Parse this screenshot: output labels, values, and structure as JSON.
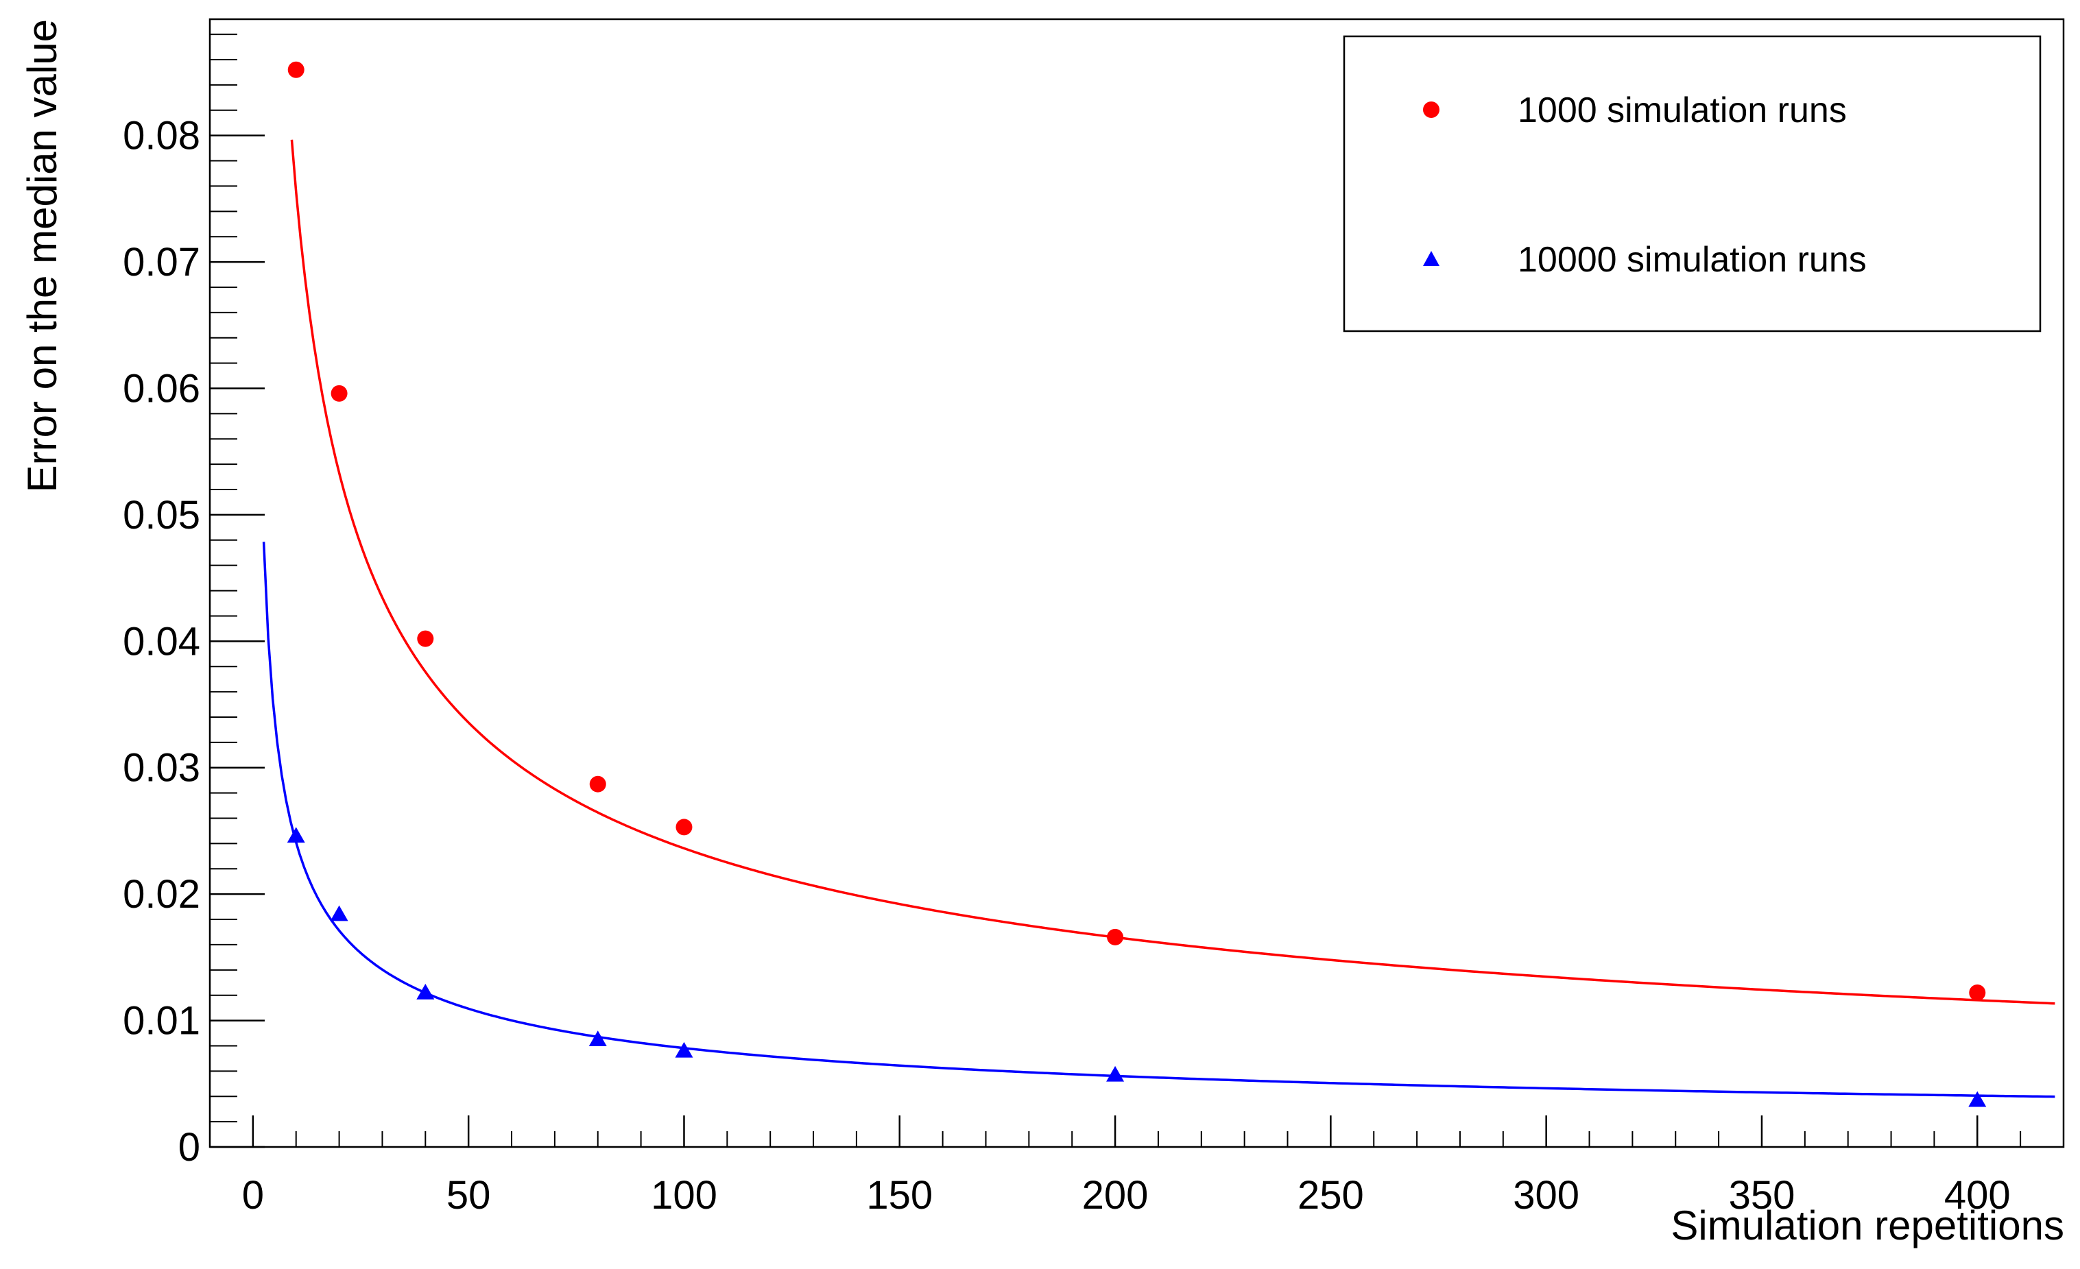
{
  "chart_data": {
    "type": "scatter",
    "title": "",
    "xlabel": "Simulation repetitions",
    "ylabel": "Error on the median value",
    "xlim": [
      -10,
      420
    ],
    "ylim": [
      0,
      0.0892
    ],
    "x_ticks": [
      0,
      50,
      100,
      150,
      200,
      250,
      300,
      350,
      400
    ],
    "x_tick_labels": [
      "0",
      "50",
      "100",
      "150",
      "200",
      "250",
      "300",
      "350",
      "400"
    ],
    "y_ticks": [
      0,
      0.01,
      0.02,
      0.03,
      0.04,
      0.05,
      0.06,
      0.07,
      0.08
    ],
    "y_tick_labels": [
      "0",
      "0.01",
      "0.02",
      "0.03",
      "0.04",
      "0.05",
      "0.06",
      "0.07",
      "0.08"
    ],
    "grid": false,
    "legend_position": "top-right",
    "series": [
      {
        "name": "1000 simulation runs",
        "color": "#ff0000",
        "marker": "circle",
        "x": [
          10,
          20,
          40,
          80,
          100,
          200,
          400
        ],
        "y": [
          0.0852,
          0.0596,
          0.0402,
          0.0287,
          0.0253,
          0.0166,
          0.0122
        ],
        "fit": {
          "a": 0.2402,
          "b": -0.0004,
          "x_range": [
            9,
            418
          ]
        }
      },
      {
        "name": "10000 simulation runs",
        "color": "#0000ff",
        "marker": "triangle",
        "x": [
          10,
          20,
          40,
          80,
          100,
          200,
          400
        ],
        "y": [
          0.0246,
          0.0184,
          0.0122,
          0.0085,
          0.0076,
          0.0057,
          0.0037
        ],
        "fit": {
          "a": 0.0752,
          "b": 0.0003,
          "x_range": [
            2.5,
            418
          ]
        }
      }
    ]
  }
}
